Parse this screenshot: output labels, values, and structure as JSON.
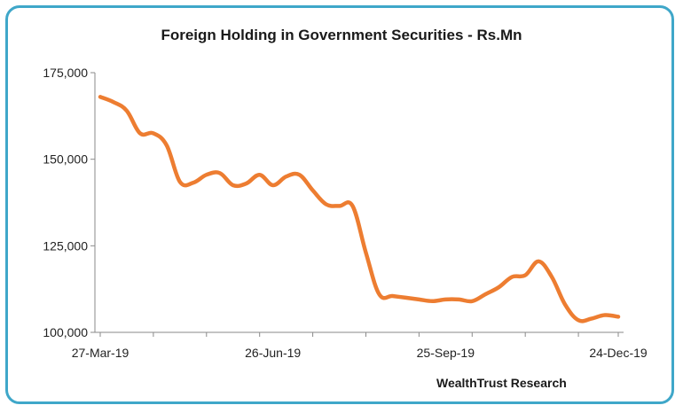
{
  "chart_data": {
    "type": "line",
    "title": "Foreign Holding in Government Securities - Rs.Mn",
    "source": "WealthTrust Research",
    "xlabel": "",
    "ylabel": "",
    "ylim": [
      100000,
      175000
    ],
    "yticks": [
      "175,000",
      "150,000",
      "125,000",
      "100,000"
    ],
    "xticks": [
      "27-Mar-19",
      "26-Jun-19",
      "25-Sep-19",
      "24-Dec-19"
    ],
    "grid": false,
    "line_color": "#ed7d31",
    "series": [
      {
        "name": "",
        "x": [
          "27-Mar-19",
          "03-Apr-19",
          "10-Apr-19",
          "17-Apr-19",
          "24-Apr-19",
          "01-May-19",
          "08-May-19",
          "15-May-19",
          "22-May-19",
          "29-May-19",
          "05-Jun-19",
          "12-Jun-19",
          "19-Jun-19",
          "26-Jun-19",
          "03-Jul-19",
          "10-Jul-19",
          "17-Jul-19",
          "24-Jul-19",
          "31-Jul-19",
          "07-Aug-19",
          "14-Aug-19",
          "21-Aug-19",
          "28-Aug-19",
          "04-Sep-19",
          "11-Sep-19",
          "18-Sep-19",
          "25-Sep-19",
          "02-Oct-19",
          "09-Oct-19",
          "16-Oct-19",
          "23-Oct-19",
          "30-Oct-19",
          "06-Nov-19",
          "13-Nov-19",
          "20-Nov-19",
          "27-Nov-19",
          "04-Dec-19",
          "11-Dec-19",
          "18-Dec-19",
          "24-Dec-19"
        ],
        "values": [
          168000,
          166500,
          164000,
          157500,
          157500,
          154000,
          143500,
          143200,
          145500,
          146000,
          142500,
          143000,
          145500,
          142500,
          145000,
          145500,
          141000,
          137000,
          136500,
          136500,
          123000,
          111000,
          110500,
          110000,
          109500,
          109000,
          109500,
          109500,
          109000,
          111000,
          113000,
          116000,
          116500,
          120500,
          116000,
          108000,
          103500,
          104000,
          105000,
          104500
        ]
      }
    ]
  }
}
